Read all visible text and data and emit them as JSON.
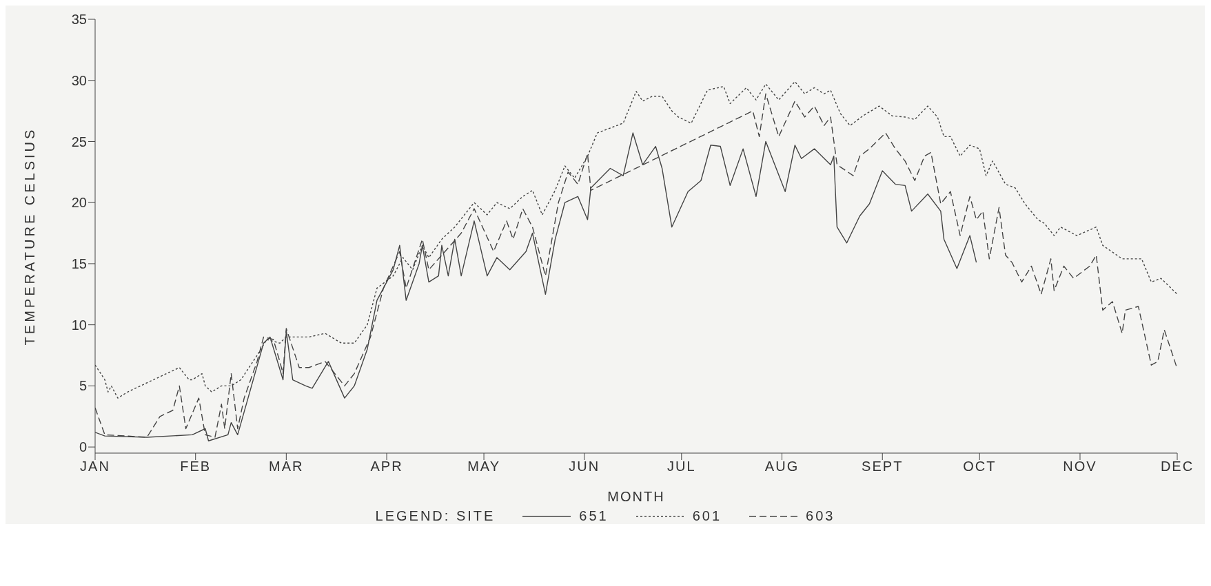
{
  "chart_data": {
    "type": "line",
    "xlabel": "MONTH",
    "ylabel": "TEMPERATURE  CELSIUS",
    "legend_title": "LEGEND:  SITE",
    "legend": "bottom",
    "xlim": [
      "--01-01",
      "--12-01"
    ],
    "xticks": [
      {
        "value": "--01-01",
        "label": "JAN"
      },
      {
        "value": "--02-01",
        "label": "FEB"
      },
      {
        "value": "--03-01",
        "label": "MAR"
      },
      {
        "value": "--04-01",
        "label": "APR"
      },
      {
        "value": "--05-01",
        "label": "MAY"
      },
      {
        "value": "--06-01",
        "label": "JUN"
      },
      {
        "value": "--07-01",
        "label": "JUL"
      },
      {
        "value": "--08-01",
        "label": "AUG"
      },
      {
        "value": "--09-01",
        "label": "SEPT"
      },
      {
        "value": "--10-01",
        "label": "OCT"
      },
      {
        "value": "--11-01",
        "label": "NOV"
      },
      {
        "value": "--12-01",
        "label": "DEC"
      }
    ],
    "ylim": [
      -0.5,
      35
    ],
    "yticks": [
      0,
      5,
      10,
      15,
      20,
      25,
      30,
      35
    ],
    "series": [
      {
        "name": "651",
        "color": "#444444",
        "line_style": "solid",
        "x": [
          "--01-01",
          "--01-04",
          "--01-17",
          "--01-31",
          "--02-04",
          "--02-05",
          "--02-11",
          "--02-12",
          "--02-14",
          "--02-22",
          "--02-24",
          "--02-28",
          "--03-01",
          "--03-03",
          "--03-07",
          "--03-09",
          "--03-14",
          "--03-19",
          "--03-22",
          "--03-26",
          "--03-29",
          "--04-03",
          "--04-05",
          "--04-07",
          "--04-11",
          "--04-12",
          "--04-14",
          "--04-17",
          "--04-18",
          "--04-20",
          "--04-22",
          "--04-24",
          "--04-28",
          "--05-02",
          "--05-05",
          "--05-09",
          "--05-14",
          "--05-16",
          "--05-20",
          "--05-23",
          "--05-26",
          "--05-30",
          "--06-02",
          "--06-03",
          "--06-09",
          "--06-13",
          "--06-16",
          "--06-19",
          "--06-23",
          "--06-25",
          "--06-28",
          "--07-03",
          "--07-07",
          "--07-10",
          "--07-13",
          "--07-16",
          "--07-20",
          "--07-24",
          "--07-27",
          "--08-02",
          "--08-05",
          "--08-07",
          "--08-11",
          "--08-16",
          "--08-17",
          "--08-18",
          "--08-21",
          "--08-25",
          "--08-28",
          "--09-01",
          "--09-05",
          "--09-08",
          "--09-10",
          "--09-15",
          "--09-19",
          "--09-20",
          "--09-24",
          "--09-28",
          "--09-30"
        ],
        "values": [
          1.2,
          0.9,
          0.8,
          1,
          1.5,
          0.5,
          1,
          2,
          1,
          8.5,
          9,
          5.5,
          9.5,
          5.5,
          5,
          4.8,
          7,
          4,
          5,
          8,
          12,
          14.5,
          16.5,
          12,
          15,
          16.5,
          13.5,
          14,
          16.5,
          14,
          17,
          14,
          18.5,
          14,
          15.5,
          14.5,
          16,
          17.5,
          12.5,
          17,
          20,
          20.5,
          18.6,
          21.2,
          22.8,
          22.2,
          25.7,
          23.1,
          24.6,
          22.8,
          18,
          20.9,
          21.8,
          24.7,
          24.6,
          21.4,
          24.4,
          20.5,
          25,
          20.9,
          24.7,
          23.6,
          24.4,
          23.1,
          23.8,
          18,
          16.7,
          18.9,
          19.9,
          22.6,
          21.5,
          21.4,
          19.3,
          20.7,
          19.3,
          17,
          14.6,
          17.3,
          15.1
        ]
      },
      {
        "name": "601",
        "color": "#444444",
        "line_style": "dotted",
        "x": [
          "--01-01",
          "--01-04",
          "--01-05",
          "--01-06",
          "--01-08",
          "--01-11",
          "--01-27",
          "--01-30",
          "--01-31",
          "--02-03",
          "--02-04",
          "--02-06",
          "--02-09",
          "--02-12",
          "--02-15",
          "--02-20",
          "--02-23",
          "--02-27",
          "--03-01",
          "--03-08",
          "--03-13",
          "--03-18",
          "--03-22",
          "--03-26",
          "--03-29",
          "--04-03",
          "--04-06",
          "--04-09",
          "--04-12",
          "--04-14",
          "--04-18",
          "--04-22",
          "--04-28",
          "--05-02",
          "--05-05",
          "--05-09",
          "--05-13",
          "--05-16",
          "--05-19",
          "--05-23",
          "--05-26",
          "--05-29",
          "--06-02",
          "--06-05",
          "--06-13",
          "--06-17",
          "--06-19",
          "--06-22",
          "--06-25",
          "--06-28",
          "--06-30",
          "--07-04",
          "--07-09",
          "--07-14",
          "--07-16",
          "--07-21",
          "--07-24",
          "--07-27",
          "--07-31",
          "--08-05",
          "--08-08",
          "--08-11",
          "--08-14",
          "--08-16",
          "--08-19",
          "--08-22",
          "--08-26",
          "--08-31",
          "--09-04",
          "--09-08",
          "--09-11",
          "--09-15",
          "--09-18",
          "--09-20",
          "--09-22",
          "--09-25",
          "--09-28",
          "--10-01",
          "--10-03",
          "--10-05",
          "--10-09",
          "--10-12",
          "--10-15",
          "--10-19",
          "--10-21",
          "--10-24",
          "--10-26",
          "--10-31",
          "--11-06",
          "--11-08",
          "--11-14",
          "--11-20",
          "--11-23",
          "--11-26",
          "--12-01"
        ],
        "values": [
          6.7,
          5.5,
          4.5,
          5,
          4,
          4.5,
          6.5,
          5.5,
          5.5,
          6,
          5,
          4.5,
          5,
          5,
          5.5,
          7.5,
          8.8,
          8.5,
          9,
          9,
          9.3,
          8.5,
          8.5,
          10,
          13,
          14,
          15.5,
          14.5,
          16.5,
          15.5,
          17,
          18,
          20,
          19,
          20,
          19.5,
          20.5,
          21,
          19,
          21,
          23,
          22,
          23.8,
          25.7,
          26.5,
          29.1,
          28.3,
          28.7,
          28.7,
          27.5,
          27,
          26.5,
          29.2,
          29.5,
          28.1,
          29.4,
          28.4,
          29.7,
          28.4,
          29.9,
          28.9,
          29.4,
          28.9,
          29.2,
          27.3,
          26.3,
          27.1,
          27.9,
          27.1,
          27,
          26.8,
          27.9,
          27,
          25.4,
          25.4,
          23.8,
          24.7,
          24.4,
          22.2,
          23.4,
          21.5,
          21.2,
          19.9,
          18.6,
          18.3,
          17.3,
          18,
          17.3,
          18,
          16.5,
          15.4,
          15.4,
          13.5,
          13.8,
          12.5
        ]
      },
      {
        "name": "603",
        "color": "#444444",
        "line_style": "dashed",
        "x": [
          "--01-01",
          "--01-04",
          "--01-17",
          "--01-21",
          "--01-25",
          "--01-27",
          "--01-29",
          "--02-02",
          "--02-04",
          "--02-07",
          "--02-09",
          "--02-10",
          "--02-12",
          "--02-14",
          "--02-16",
          "--02-20",
          "--02-22",
          "--02-25",
          "--02-27",
          "--02-28",
          "--03-01",
          "--03-05",
          "--03-08",
          "--03-13",
          "--03-19",
          "--03-22",
          "--03-27",
          "--03-31",
          "--04-05",
          "--04-07",
          "--04-12",
          "--04-14",
          "--04-19",
          "--04-24",
          "--04-28",
          "--05-04",
          "--05-08",
          "--05-10",
          "--05-13",
          "--05-16",
          "--05-20",
          "--05-24",
          "--05-27",
          "--05-30",
          "--06-02",
          "--06-03",
          "--07-23",
          "--07-25",
          "--07-27",
          "--07-31",
          "--08-05",
          "--08-08",
          "--08-11",
          "--08-14",
          "--08-16",
          "--08-18",
          "--08-23",
          "--08-25",
          "--08-28",
          "--09-02",
          "--09-05",
          "--09-08",
          "--09-11",
          "--09-14",
          "--09-16",
          "--09-19",
          "--09-22",
          "--09-25",
          "--09-28",
          "--09-30",
          "--10-02",
          "--10-04",
          "--10-07",
          "--10-09",
          "--10-11",
          "--10-14",
          "--10-17",
          "--10-20",
          "--10-23",
          "--10-24",
          "--10-27",
          "--10-30",
          "--11-04",
          "--11-06",
          "--11-08",
          "--11-11",
          "--11-14",
          "--11-15",
          "--11-19",
          "--11-23",
          "--11-25",
          "--11-27",
          "--12-01"
        ],
        "values": [
          3.2,
          1,
          0.8,
          2.5,
          3,
          5,
          1.5,
          4,
          1,
          0.8,
          3.5,
          1.5,
          6,
          1.5,
          4,
          7,
          9,
          8.8,
          7,
          6,
          9.7,
          6.5,
          6.5,
          7,
          5,
          6,
          9,
          13,
          16,
          13,
          17,
          14.5,
          16,
          17.5,
          19.5,
          16,
          18.5,
          17,
          19.5,
          18,
          14,
          20,
          22.5,
          21.5,
          24,
          21,
          27.5,
          25.4,
          28.9,
          25.4,
          28.3,
          27,
          27.9,
          26.3,
          27,
          23.1,
          22.2,
          23.8,
          24.4,
          25.7,
          24.4,
          23.4,
          21.8,
          23.8,
          24.1,
          19.9,
          20.9,
          17.3,
          20.5,
          18.6,
          19.3,
          15.4,
          19.6,
          15.7,
          15.1,
          13.5,
          14.8,
          12.5,
          15.4,
          12.8,
          14.8,
          13.8,
          14.8,
          15.7,
          11.2,
          11.9,
          9.3,
          11.2,
          11.5,
          6.7,
          7,
          9.6,
          6.4
        ]
      }
    ]
  }
}
